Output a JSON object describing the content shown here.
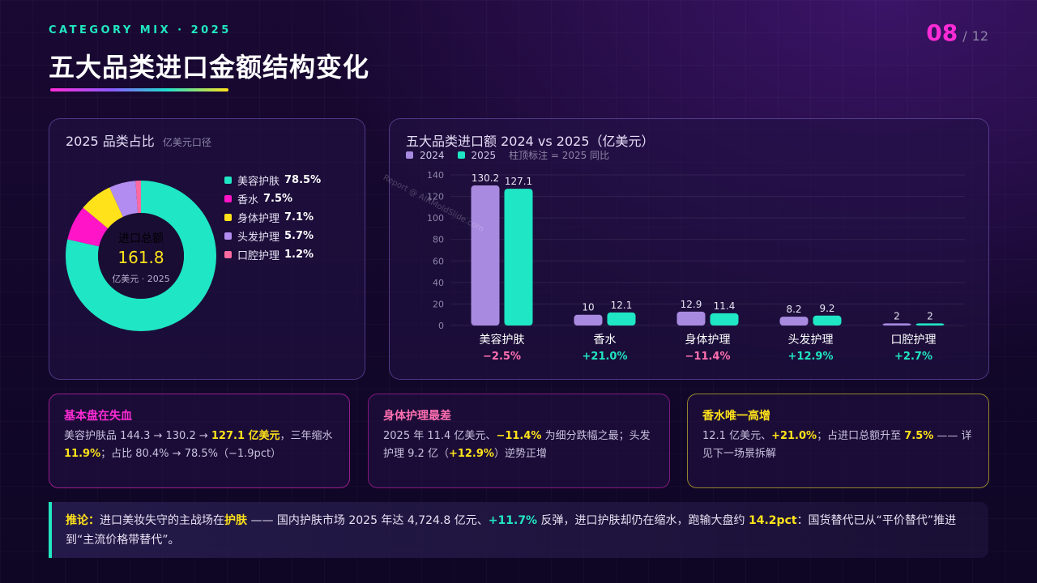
{
  "header": {
    "kicker": "CATEGORY MIX · 2025",
    "title": "五大品类进口金额结构变化",
    "page_current": "08",
    "page_sep": "/",
    "page_total": "12"
  },
  "pie_panel": {
    "title": "2025 品类占比",
    "subtitle": "亿美元口径",
    "center_label": "进口总额",
    "center_value": "161.8",
    "center_unit": "亿美元 · 2025",
    "legend": [
      {
        "name": "美容护肤",
        "pct": "78.5%",
        "color": "#1fe6c4"
      },
      {
        "name": "香水",
        "pct": "7.5%",
        "color": "#ff14c8"
      },
      {
        "name": "身体护理",
        "pct": "7.1%",
        "color": "#ffe21a"
      },
      {
        "name": "头发护理",
        "pct": "5.7%",
        "color": "#b28cf0"
      },
      {
        "name": "口腔护理",
        "pct": "1.2%",
        "color": "#ff6aa0"
      }
    ]
  },
  "bar_panel": {
    "title": "五大品类进口额 2024 vs 2025（亿美元）",
    "legend_2024": "2024",
    "legend_2025": "2025",
    "note": "柱顶标注 = 2025 同比"
  },
  "watermark": "Report @ AIRMoldSlide.com",
  "chart_data": [
    {
      "type": "pie",
      "categories": [
        "美容护肤",
        "香水",
        "身体护理",
        "头发护理",
        "口腔护理"
      ],
      "values": [
        78.5,
        7.5,
        7.1,
        5.7,
        1.2
      ],
      "colors": [
        "#1fe6c4",
        "#ff14c8",
        "#ffe21a",
        "#b28cf0",
        "#ff6aa0"
      ],
      "title": "2025 品类占比"
    },
    {
      "type": "bar",
      "categories": [
        "美容护肤",
        "香水",
        "身体护理",
        "头发护理",
        "口腔护理"
      ],
      "series": [
        {
          "name": "2024",
          "values": [
            130.2,
            10,
            12.9,
            8.2,
            2
          ],
          "color": "#a88ae0"
        },
        {
          "name": "2025",
          "values": [
            127.1,
            12.1,
            11.4,
            9.2,
            2
          ],
          "color": "#1fe6c4"
        }
      ],
      "value_labels": {
        "2024": [
          "130.2",
          "10",
          "12.9",
          "8.2",
          "2"
        ],
        "2025": [
          "127.1",
          "12.1",
          "11.4",
          "9.2",
          "2"
        ]
      },
      "yoy": [
        "−2.5%",
        "+21.0%",
        "−11.4%",
        "+12.9%",
        "+2.7%"
      ],
      "yoy_colors": [
        "#ff6fb0",
        "#21e6c1",
        "#ff6fb0",
        "#21e6c1",
        "#21e6c1"
      ],
      "yticks": [
        0,
        20,
        40,
        60,
        80,
        100,
        120,
        140
      ],
      "ylim": [
        0,
        140
      ],
      "title": "五大品类进口额 2024 vs 2025（亿美元）",
      "grid": true,
      "legend": "top-left"
    }
  ],
  "cards": [
    {
      "title": "基本盘在失血",
      "title_color": "#ff2bd6",
      "p1": "美容护肤品 144.3 → 130.2 → ",
      "h1": "127.1 亿美元",
      "p2": "，三年缩水 ",
      "h2": "11.9%",
      "p3": "；占比 80.4% → 78.5%（−1.9pct）"
    },
    {
      "title": "身体护理最差",
      "title_color": "#ff6fb0",
      "p1": "2025 年 11.4 亿美元、",
      "h1": "−11.4%",
      "p2": " 为细分跌幅之最；头发护理 9.2 亿（",
      "h2": "+12.9%",
      "p3": "）逆势正增"
    },
    {
      "title": "香水唯一高增",
      "title_color": "#ffe21a",
      "p1": "12.1 亿美元、",
      "h1": "+21.0%",
      "p2": "；占进口总额升至 ",
      "h2": "7.5%",
      "p3": " —— 详见下一场景拆解"
    }
  ],
  "conclusion": {
    "lead": "推论：",
    "p1": "进口美妆失守的主战场在",
    "h1": "护肤",
    "p2": " —— 国内护肤市场 2025 年达 4,724.8 亿元、",
    "h2": "+11.7%",
    "p3": " 反弹，进口护肤却仍在缩水，跑输大盘约 ",
    "h3": "14.2pct",
    "p4": "：国货替代已从“平价替代”推进到“主流价格带替代”。"
  }
}
